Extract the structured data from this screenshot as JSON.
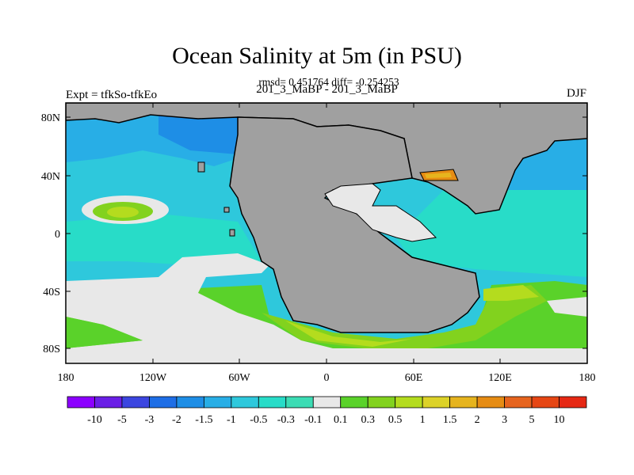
{
  "title": "Ocean Salinity at 5m (in PSU)",
  "stats_line": "rmsd= 0.451764 diff= -0.254253",
  "experiment_label": "Expt = tfkSo-tfkEo",
  "comparison_label": "201_3_MaBP - 201_3_MaBP",
  "season_label": "DJF",
  "lat_ticks": [
    "80N",
    "40N",
    "0",
    "40S",
    "80S"
  ],
  "lon_ticks": [
    "180",
    "120W",
    "60W",
    "0",
    "60E",
    "120E",
    "180"
  ],
  "colorbar": {
    "labels": [
      "-10",
      "-5",
      "-3",
      "-2",
      "-1.5",
      "-1",
      "-0.5",
      "-0.3",
      "-0.1",
      "0.1",
      "0.3",
      "0.5",
      "1",
      "1.5",
      "2",
      "3",
      "5",
      "10"
    ],
    "colors": [
      "#8c00ff",
      "#6a1fe6",
      "#3c46e0",
      "#1e6ee6",
      "#1e8ee6",
      "#28aee6",
      "#2ec8dc",
      "#28dcc8",
      "#3cdcb4",
      "#e8e8e8",
      "#5ad22a",
      "#82d21e",
      "#b4dc1e",
      "#dcd228",
      "#e6b41e",
      "#e68c14",
      "#e6641e",
      "#e64614",
      "#e62814"
    ]
  },
  "land_color": "#a0a0a0"
}
